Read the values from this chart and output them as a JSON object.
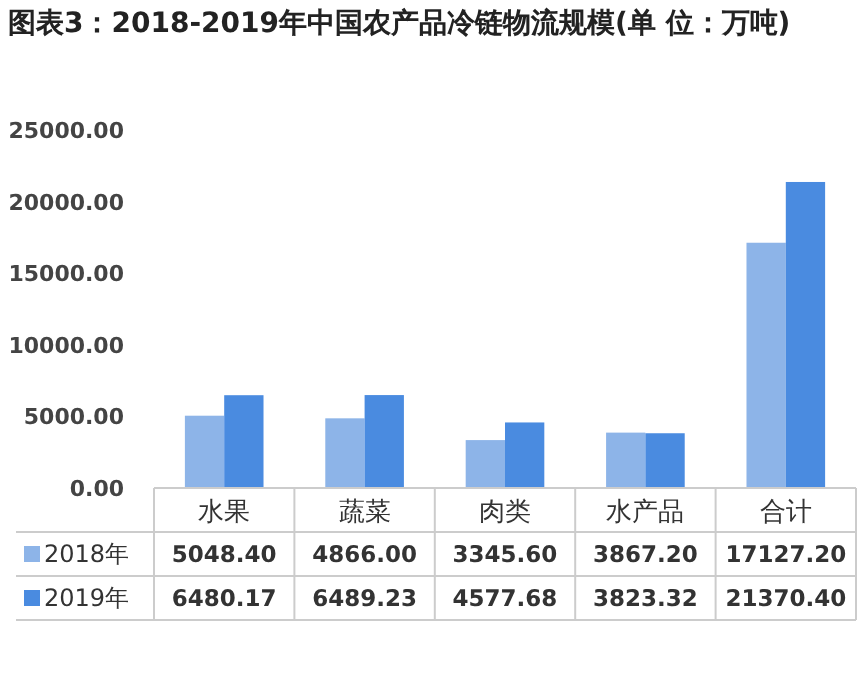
{
  "chart_data": {
    "type": "bar",
    "title": "图表3：2018-2019年中国农产品冷链物流规模(单 位：万吨)",
    "categories": [
      "水果",
      "蔬菜",
      "肉类",
      "水产品",
      "合计"
    ],
    "series": [
      {
        "name": "2018年",
        "color": "#8db4e8",
        "values": [
          5048.4,
          4866.0,
          3345.6,
          3867.2,
          17127.2
        ],
        "value_labels": [
          "5048.40",
          "4866.00",
          "3345.60",
          "3867.20",
          "17127.20"
        ]
      },
      {
        "name": "2019年",
        "color": "#4a8be0",
        "values": [
          6480.17,
          6489.23,
          4577.68,
          3823.32,
          21370.4
        ],
        "value_labels": [
          "6480.17",
          "6489.23",
          "4577.68",
          "3823.32",
          "21370.40"
        ]
      }
    ],
    "ylim": [
      0,
      25000
    ],
    "yticks": [
      {
        "value": 0,
        "label": "0.00"
      },
      {
        "value": 5000,
        "label": "5000.00"
      },
      {
        "value": 10000,
        "label": "10000.00"
      },
      {
        "value": 15000,
        "label": "15000.00"
      },
      {
        "value": 20000,
        "label": "20000.00"
      },
      {
        "value": 25000,
        "label": "25000.00"
      }
    ],
    "grid": false,
    "legend": "bottom"
  }
}
